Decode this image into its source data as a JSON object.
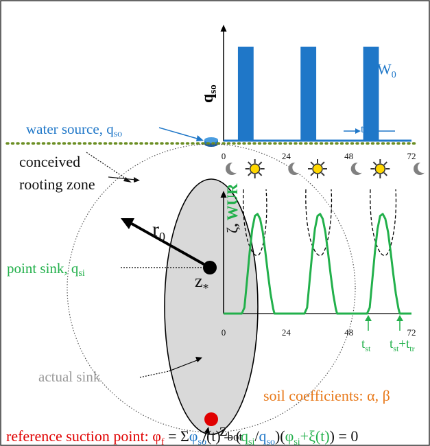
{
  "colors": {
    "blue": "#1f77c8",
    "green": "#22b04b",
    "red": "#e00000",
    "orange": "#e8791a",
    "gray_text": "#9a9a9a",
    "sink_fill": "#d9d9d9",
    "ground": "#6b8e23",
    "sun": "#ffd700",
    "moon": "#808080"
  },
  "upper_chart": {
    "ylabel_main": "q",
    "ylabel_sub": "so",
    "x_ticks": [
      "0",
      "24",
      "48",
      "72"
    ],
    "pulse_label_main": "W",
    "pulse_label_sub": "0",
    "duration_label_main": "t",
    "duration_label_sub": "0"
  },
  "lower_chart": {
    "ylabel_symbol": "ζ",
    "ylabel_comma": ",",
    "ylabel_bold": "WUR",
    "x_ticks": [
      "0",
      "24",
      "48",
      "72"
    ],
    "t_start_main": "t",
    "t_start_sub": "st",
    "t_end_main1": "t",
    "t_end_sub1": "st",
    "t_end_plus": "+t",
    "t_end_sub2": "tr"
  },
  "labels": {
    "water_source_text": "water source, q",
    "water_source_sub": "so",
    "conceived_line1": "conceived",
    "conceived_line2": "rooting zone",
    "r0_main": "r",
    "r0_sub": "0",
    "point_sink_text": "point sink, q",
    "point_sink_sub": "si",
    "zstar_main": "z",
    "zstar_sub": "*",
    "actual_sink": "actual sink",
    "zbot_main": "z",
    "zbot_sub": "bot",
    "soil_coefficients": "soil coefficients: α, β"
  },
  "equation": {
    "prefix": "reference suction point: ",
    "phi": "φ",
    "phi_sub": "f",
    "eq1": " = Σ",
    "phi_so": "φ",
    "phi_so_sub": "so",
    "t_paren": "(t)",
    "dash": " – (",
    "qsi": "q",
    "qsi_sub": "si",
    "slash": "/",
    "qso": "q",
    "qso_sub": "so",
    "close_open": ")(",
    "phi_si": "φ",
    "phi_si_sub": "si",
    "plus_xi": "+ξ(t)",
    "end": ") = 0"
  },
  "chart_data": [
    {
      "type": "bar",
      "name": "water supply pulses",
      "x_ticks": [
        0,
        24,
        48,
        72
      ],
      "xlim": [
        0,
        72
      ],
      "pulses": [
        {
          "start": 5.5,
          "end": 11.5,
          "value": 1
        },
        {
          "start": 29.5,
          "end": 35.5,
          "value": 1
        },
        {
          "start": 53.5,
          "end": 59.5,
          "value": 1
        }
      ],
      "ylim": [
        0,
        1.2
      ]
    },
    {
      "type": "line",
      "name": "water uptake rate",
      "x_ticks": [
        0,
        24,
        48,
        72
      ],
      "xlim": [
        0,
        72
      ],
      "ylim": [
        0,
        1.15
      ],
      "x": [
        0,
        7,
        8,
        9,
        10,
        11,
        12,
        13,
        14,
        15,
        16,
        17,
        18,
        19,
        19.5,
        24,
        31,
        32,
        33,
        34,
        35,
        36,
        37,
        38,
        39,
        40,
        41,
        42,
        43,
        43.5,
        48,
        55,
        56,
        57,
        58,
        59,
        60,
        61,
        62,
        63,
        64,
        65,
        66,
        67,
        67.5,
        72
      ],
      "y": [
        0,
        0,
        0.06,
        0.34,
        0.62,
        0.85,
        0.98,
        1.0,
        0.95,
        0.82,
        0.62,
        0.4,
        0.2,
        0.05,
        0,
        0,
        0,
        0.06,
        0.34,
        0.62,
        0.85,
        0.98,
        1.0,
        0.95,
        0.82,
        0.62,
        0.4,
        0.2,
        0.05,
        0,
        0,
        0,
        0.06,
        0.34,
        0.62,
        0.85,
        0.98,
        1.0,
        0.95,
        0.82,
        0.62,
        0.4,
        0.2,
        0.05,
        0,
        0
      ]
    }
  ]
}
